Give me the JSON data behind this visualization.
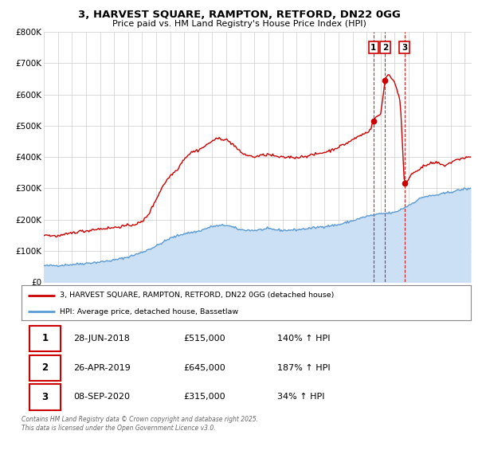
{
  "title": "3, HARVEST SQUARE, RAMPTON, RETFORD, DN22 0GG",
  "subtitle": "Price paid vs. HM Land Registry's House Price Index (HPI)",
  "legend_line1": "3, HARVEST SQUARE, RAMPTON, RETFORD, DN22 0GG (detached house)",
  "legend_line2": "HPI: Average price, detached house, Bassetlaw",
  "footer": "Contains HM Land Registry data © Crown copyright and database right 2025.\nThis data is licensed under the Open Government Licence v3.0.",
  "transactions": [
    {
      "num": "1",
      "date": "28-JUN-2018",
      "price": "£515,000",
      "pct": "140% ↑ HPI",
      "year": 2018.49,
      "price_val": 515000
    },
    {
      "num": "2",
      "date": "26-APR-2019",
      "price": "£645,000",
      "pct": "187% ↑ HPI",
      "year": 2019.32,
      "price_val": 645000
    },
    {
      "num": "3",
      "date": "08-SEP-2020",
      "price": "£315,000",
      "pct": "34% ↑ HPI",
      "year": 2020.69,
      "price_val": 315000
    }
  ],
  "property_color": "#cc0000",
  "hpi_color": "#5b9bd5",
  "hpi_fill_color": "#cce0f5",
  "background_color": "#ffffff",
  "ylim": [
    0,
    800000
  ],
  "xlim_start": 1995.0,
  "xlim_end": 2025.5,
  "vline_color": "#cc0000",
  "vline_style": "--",
  "grid_color": "#cccccc"
}
